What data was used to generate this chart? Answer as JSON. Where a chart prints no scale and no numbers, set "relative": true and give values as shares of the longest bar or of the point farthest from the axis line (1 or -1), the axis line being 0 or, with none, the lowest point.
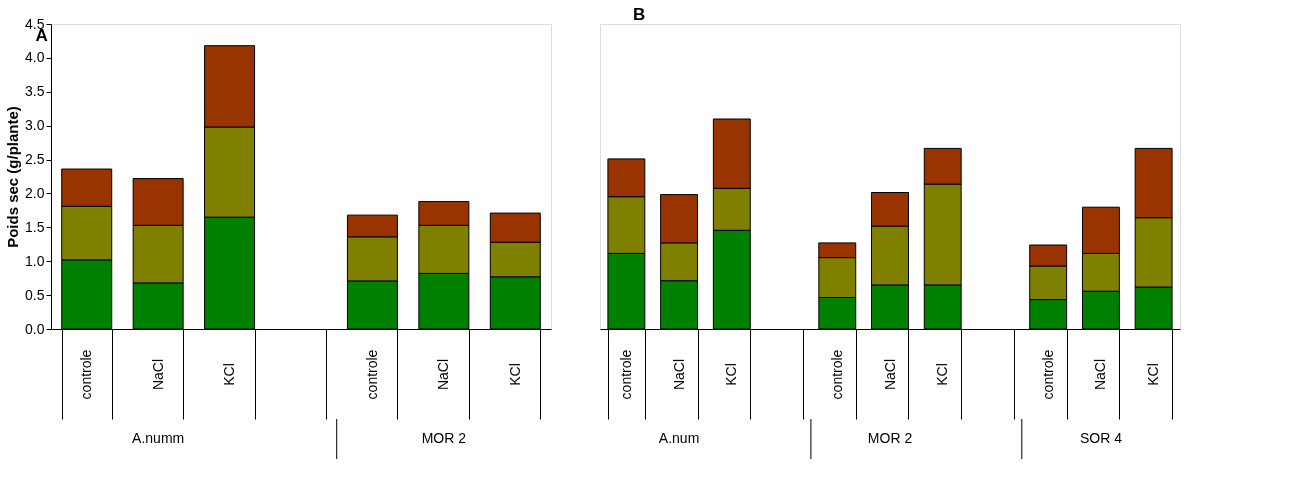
{
  "chart_data": [
    {
      "type": "bar",
      "title": "A",
      "stacked": true,
      "ylabel": "Poids sec (g/plante)",
      "categories": [
        "controle",
        "NaCl",
        "KCl",
        null,
        "controle",
        "NaCl",
        "KCl"
      ],
      "series": [
        {
          "color": "#008000",
          "values": [
            1.02,
            0.68,
            1.65,
            null,
            0.71,
            0.82,
            0.77
          ]
        },
        {
          "color": "#808000",
          "values": [
            0.79,
            0.85,
            1.33,
            null,
            0.65,
            0.71,
            0.51
          ]
        },
        {
          "color": "#993300",
          "values": [
            0.55,
            0.69,
            1.2,
            null,
            0.32,
            0.35,
            0.43
          ]
        }
      ],
      "ylim": [
        0,
        4.5
      ],
      "yticks": [
        {
          "value": 0,
          "label": "0.0"
        },
        {
          "value": 0.5,
          "label": "0.5"
        },
        {
          "value": 1,
          "label": "1.0"
        },
        {
          "value": 1.5,
          "label": "1.5"
        },
        {
          "value": 2,
          "label": "2.0"
        },
        {
          "value": 2.5,
          "label": "2.5"
        },
        {
          "value": 3,
          "label": "3.0"
        },
        {
          "value": 3.5,
          "label": "3.5"
        },
        {
          "value": 4,
          "label": "4.0"
        },
        {
          "value": 4.5,
          "label": "4.5"
        }
      ],
      "annotations": [
        "A.numm",
        "MOR 2"
      ]
    },
    {
      "type": "bar",
      "title": "B",
      "stacked": true,
      "relative": true,
      "categories": [
        "controle",
        "NaCl",
        "KCl",
        null,
        "controle",
        "NaCl",
        "KCl",
        null,
        "controle",
        "NaCl",
        "KCl"
      ],
      "series": [
        {
          "color": "#008000",
          "values": [
            0.36,
            0.23,
            0.47,
            null,
            0.15,
            0.21,
            0.21,
            null,
            0.14,
            0.18,
            0.2
          ]
        },
        {
          "color": "#808000",
          "values": [
            0.27,
            0.18,
            0.2,
            null,
            0.19,
            0.28,
            0.48,
            null,
            0.16,
            0.18,
            0.33
          ]
        },
        {
          "color": "#993300",
          "values": [
            0.18,
            0.23,
            0.33,
            null,
            0.07,
            0.16,
            0.17,
            null,
            0.1,
            0.22,
            0.33
          ]
        }
      ],
      "annotations": [
        "A.num",
        "MOR 2",
        "SOR 4"
      ]
    }
  ]
}
